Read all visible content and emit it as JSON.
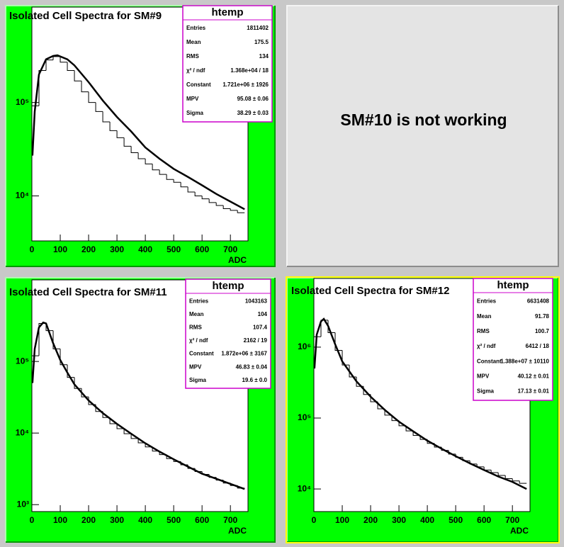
{
  "message": "SM#10 is not working",
  "chart_data": [
    {
      "type": "histogram",
      "title": "Isolated Cell Spectra for SM#9",
      "xlabel": "ADC",
      "color": "#000000",
      "pad_color": "#00ff00",
      "log_y": true,
      "bins": [
        0,
        25,
        50,
        75,
        100,
        125,
        150,
        175,
        200,
        225,
        250,
        275,
        300,
        325,
        350,
        375,
        400,
        425,
        450,
        475,
        500,
        525,
        550,
        575,
        600,
        625,
        650,
        675,
        700,
        725,
        750
      ],
      "values": [
        92000,
        220000,
        285000,
        310000,
        270000,
        220000,
        170000,
        130000,
        100000,
        80000,
        62000,
        50000,
        42000,
        34000,
        29000,
        25000,
        22000,
        19000,
        17000,
        15000,
        14000,
        12500,
        11000,
        10000,
        9300,
        8500,
        7900,
        7300,
        7000,
        6600
      ],
      "fit": {
        "x": [
          2,
          10,
          25,
          50,
          75,
          90,
          125,
          150,
          200,
          250,
          300,
          350,
          400,
          450,
          500,
          550,
          600,
          650,
          700,
          750
        ],
        "values": [
          27000,
          80000,
          200000,
          290000,
          315000,
          320000,
          290000,
          250000,
          165000,
          105000,
          70000,
          49000,
          33000,
          25000,
          19500,
          16000,
          13000,
          10500,
          8700,
          7200
        ]
      },
      "xlim": [
        0,
        762
      ],
      "ylim": [
        3300,
        1050000
      ],
      "xticks": [
        0,
        100,
        200,
        300,
        400,
        500,
        600,
        700
      ],
      "yticks": [
        {
          "value": 10000,
          "label": "10⁴"
        },
        {
          "value": 100000,
          "label": "10⁵"
        }
      ],
      "stats": {
        "title": "htemp",
        "rows": [
          {
            "label": "Entries",
            "value": "1811402"
          },
          {
            "label": "Mean",
            "value": "175.5"
          },
          {
            "label": "RMS",
            "value": "134"
          },
          {
            "label": "χ² / ndf",
            "value": "1.368e+04 / 18"
          },
          {
            "label": "Constant",
            "value": "1.721e+06 ± 1926"
          },
          {
            "label": "MPV",
            "value": "95.08 ± 0.06"
          },
          {
            "label": "Sigma",
            "value": "38.29 ± 0.03"
          }
        ]
      }
    },
    {
      "type": "histogram",
      "title": "Isolated Cell Spectra for SM#11",
      "xlabel": "ADC",
      "color": "#000000",
      "pad_color": "#00ff00",
      "log_y": true,
      "bins": [
        0,
        25,
        50,
        75,
        100,
        125,
        150,
        175,
        200,
        225,
        250,
        275,
        300,
        325,
        350,
        375,
        400,
        425,
        450,
        475,
        500,
        525,
        550,
        575,
        600,
        625,
        650,
        675,
        700,
        725,
        750
      ],
      "values": [
        120000,
        340000,
        270000,
        150000,
        90000,
        60000,
        42000,
        32000,
        25000,
        20000,
        16500,
        13500,
        11500,
        9800,
        8400,
        7300,
        6400,
        5600,
        5000,
        4400,
        4000,
        3600,
        3200,
        2900,
        2650,
        2400,
        2200,
        2000,
        1850,
        1700
      ],
      "fit": {
        "x": [
          2,
          10,
          25,
          40,
          50,
          75,
          100,
          125,
          150,
          200,
          250,
          300,
          350,
          400,
          450,
          500,
          550,
          600,
          650,
          700,
          750
        ],
        "values": [
          50000,
          150000,
          300000,
          350000,
          340000,
          180000,
          105000,
          70000,
          48000,
          28500,
          19000,
          13400,
          9800,
          7200,
          5500,
          4300,
          3400,
          2700,
          2300,
          1950,
          1650
        ]
      },
      "xlim": [
        0,
        762
      ],
      "ylim": [
        800,
        1380000
      ],
      "xticks": [
        0,
        100,
        200,
        300,
        400,
        500,
        600,
        700
      ],
      "yticks": [
        {
          "value": 1000,
          "label": "10³"
        },
        {
          "value": 10000,
          "label": "10⁴"
        },
        {
          "value": 100000,
          "label": "10⁵"
        }
      ],
      "stats": {
        "title": "htemp",
        "rows": [
          {
            "label": "Entries",
            "value": "1043163"
          },
          {
            "label": "Mean",
            "value": "104"
          },
          {
            "label": "RMS",
            "value": "107.4"
          },
          {
            "label": "χ² / ndf",
            "value": "2162 / 19"
          },
          {
            "label": "Constant",
            "value": "1.872e+06 ± 3167"
          },
          {
            "label": "MPV",
            "value": "46.83 ± 0.04"
          },
          {
            "label": "Sigma",
            "value": "19.6 ± 0.0"
          }
        ]
      }
    },
    {
      "type": "histogram",
      "title": "Isolated Cell Spectra for SM#12",
      "xlabel": "ADC",
      "color": "#000000",
      "pad_color": "#00ff00",
      "log_y": true,
      "bins": [
        0,
        25,
        50,
        75,
        100,
        125,
        150,
        175,
        200,
        225,
        250,
        275,
        300,
        325,
        350,
        375,
        400,
        425,
        450,
        475,
        500,
        525,
        550,
        575,
        600,
        625,
        650,
        675,
        700,
        725,
        750
      ],
      "values": [
        1400000,
        2400000,
        1600000,
        900000,
        560000,
        380000,
        280000,
        215000,
        170000,
        135000,
        110000,
        92000,
        78000,
        66000,
        57000,
        50000,
        44000,
        39000,
        35000,
        31000,
        28000,
        25000,
        22500,
        20500,
        18500,
        17000,
        15500,
        14000,
        13000,
        12000
      ],
      "fit": {
        "x": [
          2,
          10,
          25,
          35,
          50,
          75,
          100,
          150,
          200,
          250,
          300,
          350,
          400,
          450,
          500,
          550,
          600,
          650,
          700,
          750
        ],
        "values": [
          500000,
          1500000,
          2300000,
          2500000,
          2000000,
          1100000,
          630000,
          330000,
          200000,
          130000,
          89000,
          65000,
          48000,
          37000,
          29000,
          23000,
          18500,
          15000,
          12600,
          10000
        ]
      },
      "xlim": [
        0,
        762
      ],
      "ylim": [
        4800,
        9300000
      ],
      "xticks": [
        0,
        100,
        200,
        300,
        400,
        500,
        600,
        700
      ],
      "yticks": [
        {
          "value": 10000,
          "label": "10⁴"
        },
        {
          "value": 100000,
          "label": "10⁵"
        },
        {
          "value": 1000000,
          "label": "10⁶"
        }
      ],
      "stats": {
        "title": "htemp",
        "rows": [
          {
            "label": "Entries",
            "value": "6631408"
          },
          {
            "label": "Mean",
            "value": "91.78"
          },
          {
            "label": "RMS",
            "value": "100.7"
          },
          {
            "label": "χ² / ndf",
            "value": "6412 / 18"
          },
          {
            "label": "Constant",
            "value": "1.388e+07 ± 10110"
          },
          {
            "label": "MPV",
            "value": "40.12 ± 0.01"
          },
          {
            "label": "Sigma",
            "value": "17.13 ± 0.01"
          }
        ]
      }
    }
  ]
}
